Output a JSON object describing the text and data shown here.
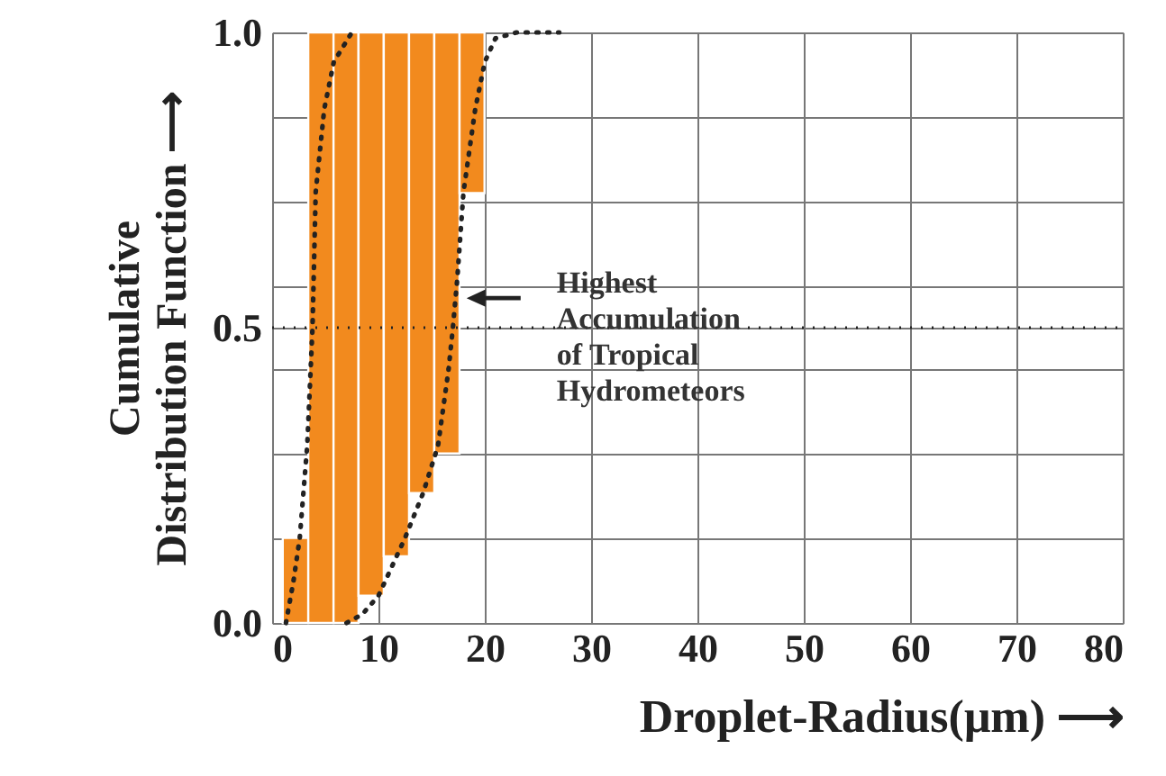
{
  "chart_data": {
    "type": "bar",
    "xlabel": "Droplet-Radius(μm) ⟶",
    "ylabel": "Cumulative\nDistribution Function ⟶",
    "xlim": [
      0,
      80
    ],
    "ylim": [
      0,
      1
    ],
    "xticks": [
      0,
      10,
      20,
      30,
      40,
      50,
      60,
      70,
      80
    ],
    "yticks": [
      {
        "value": 0,
        "label": "0.0"
      },
      {
        "value": 0.143,
        "label": null
      },
      {
        "value": 0.286,
        "label": null
      },
      {
        "value": 0.429,
        "label": null
      },
      {
        "value": 0.5,
        "label": "0.5"
      },
      {
        "value": 0.571,
        "label": null
      },
      {
        "value": 0.714,
        "label": null
      },
      {
        "value": 0.857,
        "label": null
      },
      {
        "value": 1,
        "label": "1.0"
      }
    ],
    "grid": true,
    "series": [
      {
        "color": "#f28a1e",
        "x": [
          2.2,
          4.6,
          6.95,
          9.3,
          11.7,
          14.05,
          16.45,
          18.8
        ],
        "values": [
          0.144,
          1,
          1,
          0.954,
          0.887,
          0.78,
          0.713,
          0.272
        ],
        "base": [
          0,
          0,
          0,
          0.046,
          0.113,
          0.22,
          0.287,
          0.728
        ]
      },
      {
        "type": "line",
        "color": "#222222",
        "line_style": "dotted",
        "x": [
          1.3,
          2.0,
          2.6,
          3.3,
          3.8,
          4.1,
          4.9,
          5.8,
          7.5
        ],
        "values": [
          0,
          0.07,
          0.144,
          0.3,
          0.5,
          0.73,
          0.87,
          0.95,
          1
        ]
      },
      {
        "type": "line",
        "color": "#222222",
        "line_style": "dotted",
        "x": [
          7,
          8.5,
          10,
          12.5,
          14.2,
          15.6,
          16.6,
          17,
          17.4,
          18,
          19.1,
          20,
          21,
          23,
          27
        ],
        "values": [
          0,
          0.015,
          0.046,
          0.144,
          0.22,
          0.3,
          0.43,
          0.5,
          0.58,
          0.73,
          0.87,
          0.95,
          0.99,
          1,
          1
        ]
      }
    ],
    "ref_lines": [
      {
        "axis": "y",
        "value": 0.5,
        "label": null,
        "color": "#222222",
        "line_style": "dotted"
      }
    ],
    "annotations": [
      "Highest\nAccumulation\nof Tropical\nHydrometeors"
    ]
  }
}
